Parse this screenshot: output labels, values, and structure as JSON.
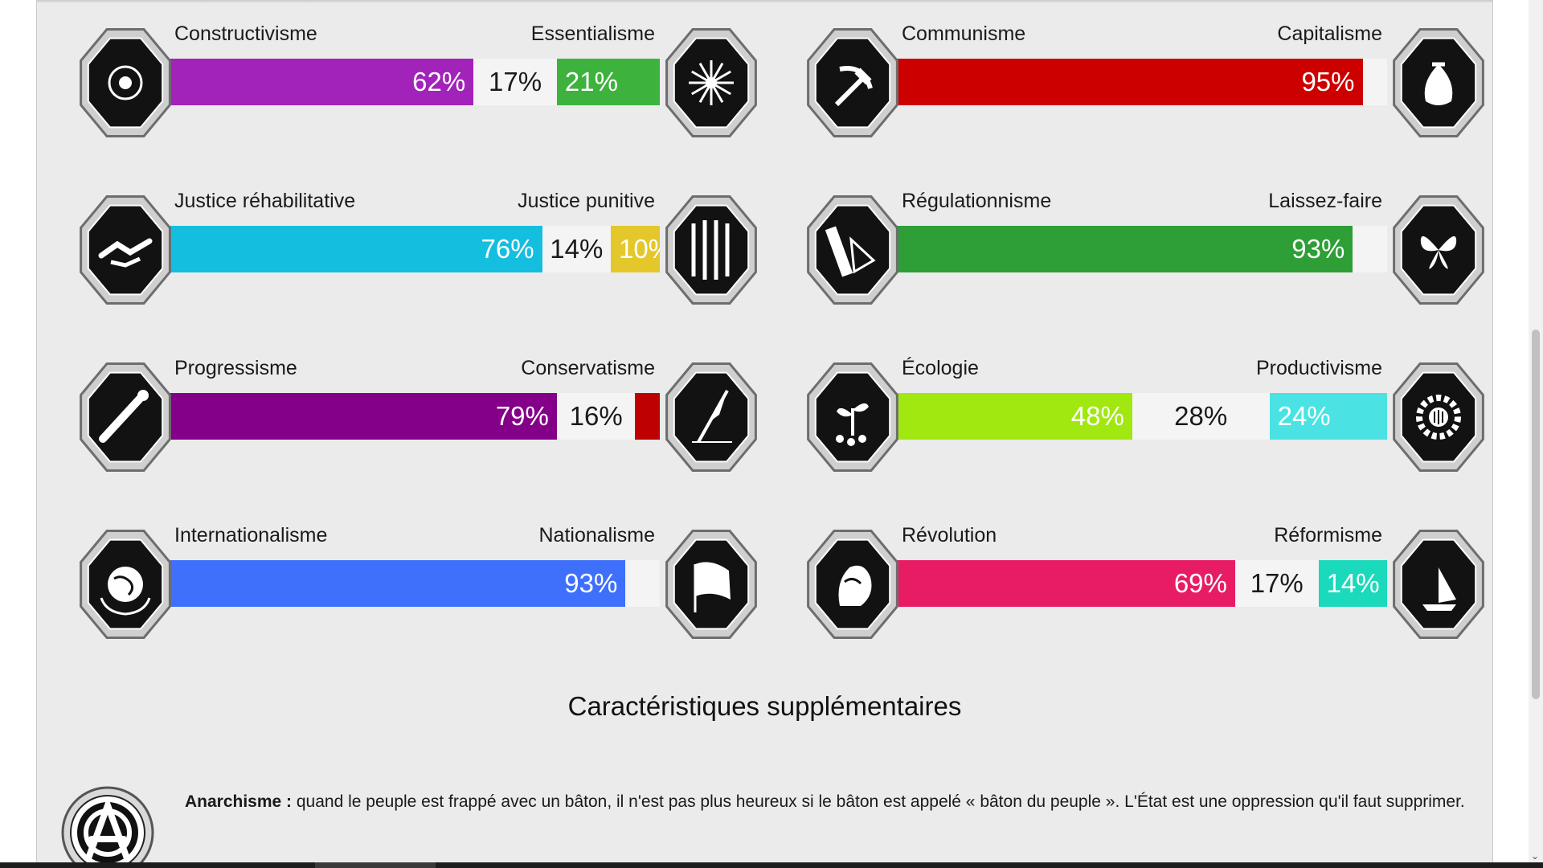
{
  "chart_data": {
    "type": "bar",
    "stacked": true,
    "orientation": "horizontal",
    "columns": [
      [
        {
          "left_label": "Constructivisme",
          "right_label": "Essentialisme",
          "left": 62,
          "middle": 17,
          "right": 21,
          "left_color": "#a123b9",
          "right_color": "#3db23d",
          "left_icon": "eye-icon",
          "right_icon": "chrysanthemum-icon"
        },
        {
          "left_label": "Justice réhabilitative",
          "right_label": "Justice punitive",
          "left": 76,
          "middle": 14,
          "right": 10,
          "left_color": "#14bedf",
          "right_color": "#e4c72a",
          "left_icon": "handshake-icon",
          "right_icon": "prison-bars-icon"
        },
        {
          "left_label": "Progressisme",
          "right_label": "Conservatisme",
          "left": 79,
          "middle": 16,
          "right": 5,
          "left_color": "#840089",
          "right_color": "#be0000",
          "left_icon": "comet-icon",
          "right_icon": "quill-pen-icon"
        },
        {
          "left_label": "Internationalisme",
          "right_label": "Nationalisme",
          "left": 93,
          "middle": 7,
          "right": 0,
          "left_color": "#3f70fb",
          "right_color": "#ffffff",
          "left_icon": "globe-laurel-icon",
          "right_icon": "flag-icon"
        }
      ],
      [
        {
          "left_label": "Communisme",
          "right_label": "Capitalisme",
          "left": 95,
          "middle": 5,
          "right": 0,
          "left_color": "#cd0000",
          "right_color": "#ffffff",
          "left_icon": "hammer-sickle-icon",
          "right_icon": "money-bag-icon"
        },
        {
          "left_label": "Régulationnisme",
          "right_label": "Laissez-faire",
          "left": 93,
          "middle": 7,
          "right": 0,
          "left_color": "#2e9e37",
          "right_color": "#ffffff",
          "left_icon": "ruler-icon",
          "right_icon": "butterfly-icon"
        },
        {
          "left_label": "Écologie",
          "right_label": "Productivisme",
          "left": 48,
          "middle": 28,
          "right": 24,
          "left_color": "#a0e80f",
          "right_color": "#4ae2e2",
          "left_icon": "sprout-icon",
          "right_icon": "gear-factory-icon"
        },
        {
          "left_label": "Révolution",
          "right_label": "Réformisme",
          "left": 69,
          "middle": 17,
          "right": 14,
          "left_color": "#e81c65",
          "right_color": "#1bd9bb",
          "left_icon": "fist-rose-icon",
          "right_icon": "sailboat-icon"
        }
      ]
    ]
  },
  "section": {
    "title": "Caractéristiques supplémentaires"
  },
  "feature": {
    "name": "Anarchisme :",
    "description": " quand le peuple est frappé avec un bâton, il n'est pas plus heureux si le bâton est appelé « bâton du peuple ». L'État est une oppression qu'il faut supprimer.",
    "icon": "anarchy-badge-icon"
  }
}
